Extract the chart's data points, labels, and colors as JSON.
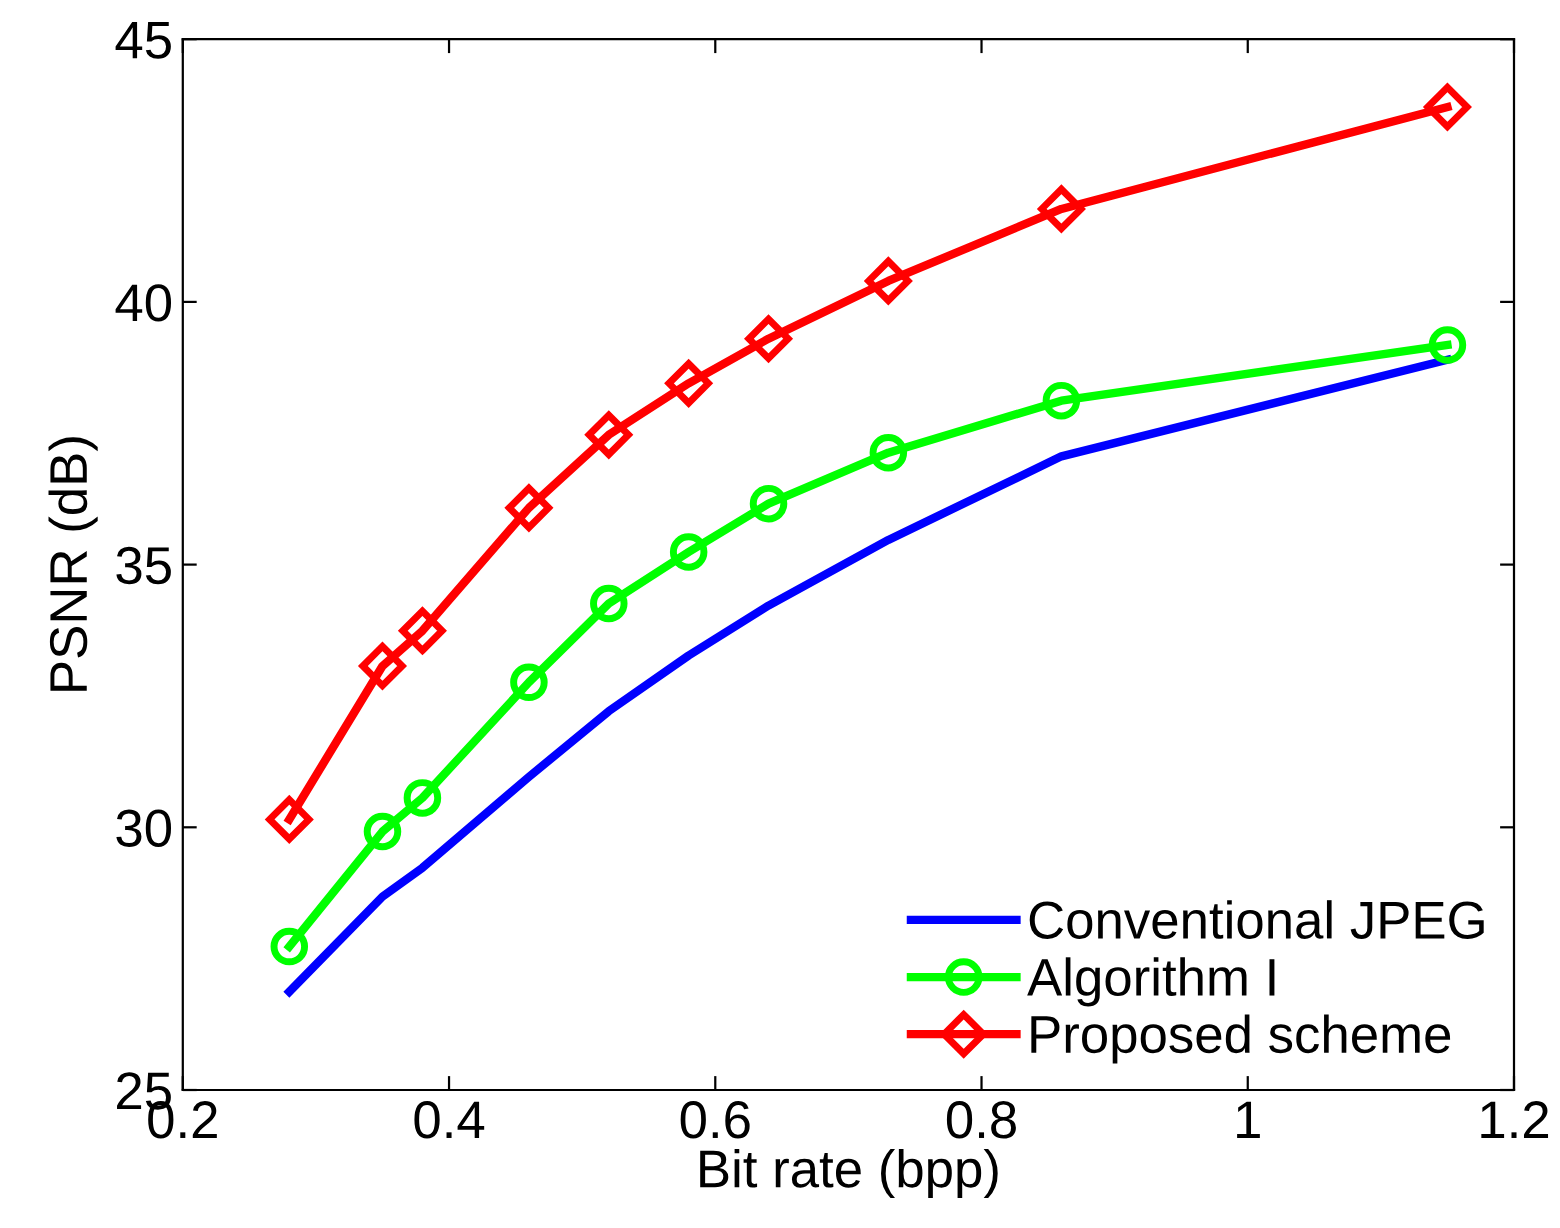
{
  "chart_data": {
    "type": "line",
    "xlabel": "Bit rate (bpp)",
    "ylabel": "PSNR (dB)",
    "xlim": [
      0.2,
      1.2
    ],
    "xticks": [
      0.2,
      0.4,
      0.6,
      0.8,
      1,
      1.2
    ],
    "ylim": [
      25,
      45
    ],
    "yticks": [
      25,
      30,
      35,
      40,
      45
    ],
    "x": [
      0.28,
      0.35,
      0.38,
      0.46,
      0.52,
      0.58,
      0.64,
      0.73,
      0.86,
      1.15
    ],
    "series": [
      {
        "name": "Conventional JPEG",
        "color": "#0000ff",
        "marker": "none",
        "values": [
          26.87,
          28.68,
          29.23,
          30.96,
          32.21,
          33.27,
          34.22,
          35.47,
          37.06,
          38.9
        ]
      },
      {
        "name": "Algorithm I",
        "color": "#00ff00",
        "marker": "circle",
        "values": [
          27.73,
          29.92,
          30.56,
          32.76,
          34.26,
          35.24,
          36.16,
          37.13,
          38.12,
          39.18
        ]
      },
      {
        "name": "Proposed scheme",
        "color": "#ff0000",
        "marker": "diamond",
        "values": [
          30.15,
          33.07,
          33.74,
          36.08,
          37.47,
          38.45,
          39.3,
          40.4,
          41.77,
          43.71
        ]
      }
    ],
    "grid": false,
    "legend": "bottom right",
    "line_style": "solid"
  }
}
